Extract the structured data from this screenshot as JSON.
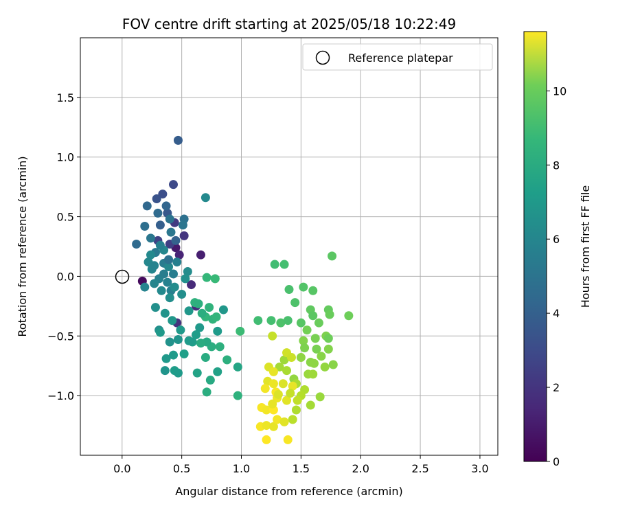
{
  "chart_data": {
    "type": "scatter",
    "title": "FOV centre drift starting at 2025/05/18 10:22:49",
    "xlabel": "Angular distance from reference (arcmin)",
    "ylabel": "Rotation from reference (arcmin)",
    "colorbar_label": "Hours from first FF file",
    "xlim": [
      -0.35,
      3.15
    ],
    "ylim": [
      -1.5,
      2.0
    ],
    "x_ticks": [
      "0.0",
      "0.5",
      "1.0",
      "1.5",
      "2.0",
      "2.5",
      "3.0"
    ],
    "y_ticks": [
      "−1.0",
      "−0.5",
      "0.0",
      "0.5",
      "1.0",
      "1.5"
    ],
    "colorbar_range": [
      0,
      11.6
    ],
    "colorbar_ticks": [
      "0",
      "2",
      "4",
      "6",
      "8",
      "10"
    ],
    "colormap": "viridis",
    "grid": true,
    "legend": {
      "placement": "top-right",
      "entries": [
        {
          "label": "Reference platepar",
          "marker": "open-circle"
        }
      ]
    },
    "reference_point": {
      "x": 0.0,
      "y": 0.0
    },
    "points": [
      {
        "x": 0.17,
        "y": -0.04,
        "h": 0.3
      },
      {
        "x": 0.45,
        "y": 0.24,
        "h": 0.8
      },
      {
        "x": 0.66,
        "y": 0.18,
        "h": 1.0
      },
      {
        "x": 0.48,
        "y": 0.18,
        "h": 1.2
      },
      {
        "x": 0.58,
        "y": -0.07,
        "h": 1.4
      },
      {
        "x": 0.62,
        "y": -0.25,
        "h": 1.5
      },
      {
        "x": 0.46,
        "y": -0.39,
        "h": 1.7
      },
      {
        "x": 0.52,
        "y": 0.34,
        "h": 1.8
      },
      {
        "x": 0.44,
        "y": 0.45,
        "h": 2.0
      },
      {
        "x": 0.4,
        "y": 0.27,
        "h": 2.2
      },
      {
        "x": 0.3,
        "y": 0.3,
        "h": 2.3
      },
      {
        "x": 0.43,
        "y": 0.77,
        "h": 2.6
      },
      {
        "x": 0.34,
        "y": 0.69,
        "h": 2.8
      },
      {
        "x": 0.29,
        "y": 0.65,
        "h": 3.0
      },
      {
        "x": 0.47,
        "y": 1.14,
        "h": 3.4
      },
      {
        "x": 0.38,
        "y": 0.53,
        "h": 3.2
      },
      {
        "x": 0.32,
        "y": 0.43,
        "h": 3.5
      },
      {
        "x": 0.45,
        "y": 0.3,
        "h": 3.6
      },
      {
        "x": 0.37,
        "y": 0.59,
        "h": 3.8
      },
      {
        "x": 0.21,
        "y": 0.59,
        "h": 3.9
      },
      {
        "x": 0.12,
        "y": 0.27,
        "h": 4.0
      },
      {
        "x": 0.19,
        "y": 0.42,
        "h": 4.2
      },
      {
        "x": 0.52,
        "y": 0.48,
        "h": 4.3
      },
      {
        "x": 0.51,
        "y": 0.43,
        "h": 4.5
      },
      {
        "x": 0.41,
        "y": 0.37,
        "h": 4.6
      },
      {
        "x": 0.28,
        "y": 0.2,
        "h": 4.7
      },
      {
        "x": 0.35,
        "y": 0.11,
        "h": 4.8
      },
      {
        "x": 0.43,
        "y": 0.02,
        "h": 4.9
      },
      {
        "x": 0.41,
        "y": -0.12,
        "h": 5.0
      },
      {
        "x": 0.31,
        "y": -0.02,
        "h": 5.1
      },
      {
        "x": 0.19,
        "y": -0.09,
        "h": 5.2
      },
      {
        "x": 0.27,
        "y": -0.06,
        "h": 5.3
      },
      {
        "x": 0.39,
        "y": 0.08,
        "h": 5.4
      },
      {
        "x": 0.24,
        "y": 0.18,
        "h": 5.5
      },
      {
        "x": 0.35,
        "y": 0.22,
        "h": 5.4
      },
      {
        "x": 0.55,
        "y": 0.04,
        "h": 5.6
      },
      {
        "x": 0.4,
        "y": -0.18,
        "h": 5.7
      },
      {
        "x": 0.31,
        "y": -0.45,
        "h": 5.8
      },
      {
        "x": 0.47,
        "y": -0.53,
        "h": 6.0
      },
      {
        "x": 0.4,
        "y": -0.55,
        "h": 5.9
      },
      {
        "x": 0.56,
        "y": -0.29,
        "h": 6.1
      },
      {
        "x": 0.65,
        "y": -0.43,
        "h": 6.2
      },
      {
        "x": 0.8,
        "y": -0.46,
        "h": 6.3
      },
      {
        "x": 0.85,
        "y": -0.28,
        "h": 6.1
      },
      {
        "x": 0.59,
        "y": -0.55,
        "h": 6.4
      },
      {
        "x": 0.52,
        "y": -0.65,
        "h": 6.5
      },
      {
        "x": 0.43,
        "y": -0.66,
        "h": 6.3
      },
      {
        "x": 0.37,
        "y": -0.69,
        "h": 6.2
      },
      {
        "x": 0.36,
        "y": -0.79,
        "h": 6.0
      },
      {
        "x": 0.44,
        "y": -0.79,
        "h": 6.4
      },
      {
        "x": 0.47,
        "y": -0.81,
        "h": 6.3
      },
      {
        "x": 0.7,
        "y": 0.66,
        "h": 5.5
      },
      {
        "x": 0.63,
        "y": -0.81,
        "h": 6.7
      },
      {
        "x": 0.71,
        "y": -0.97,
        "h": 7.2
      },
      {
        "x": 0.74,
        "y": -0.87,
        "h": 7.0
      },
      {
        "x": 0.8,
        "y": -0.8,
        "h": 6.6
      },
      {
        "x": 0.97,
        "y": -0.76,
        "h": 6.8
      },
      {
        "x": 0.97,
        "y": -1.0,
        "h": 7.4
      },
      {
        "x": 0.88,
        "y": -0.7,
        "h": 7.3
      },
      {
        "x": 0.7,
        "y": -0.68,
        "h": 7.1
      },
      {
        "x": 0.75,
        "y": -0.59,
        "h": 7.2
      },
      {
        "x": 0.82,
        "y": -0.59,
        "h": 7.3
      },
      {
        "x": 0.71,
        "y": -0.55,
        "h": 7.0
      },
      {
        "x": 0.66,
        "y": -0.56,
        "h": 7.1
      },
      {
        "x": 0.61,
        "y": -0.22,
        "h": 7.4
      },
      {
        "x": 0.7,
        "y": -0.34,
        "h": 7.6
      },
      {
        "x": 0.76,
        "y": -0.36,
        "h": 7.5
      },
      {
        "x": 0.79,
        "y": -0.34,
        "h": 7.6
      },
      {
        "x": 0.73,
        "y": -0.26,
        "h": 7.5
      },
      {
        "x": 0.71,
        "y": -0.01,
        "h": 7.7
      },
      {
        "x": 0.78,
        "y": -0.02,
        "h": 7.8
      },
      {
        "x": 0.99,
        "y": -0.46,
        "h": 7.9
      },
      {
        "x": 1.14,
        "y": -0.37,
        "h": 8.0
      },
      {
        "x": 1.25,
        "y": -0.37,
        "h": 8.1
      },
      {
        "x": 1.28,
        "y": 0.1,
        "h": 8.0
      },
      {
        "x": 1.36,
        "y": 0.1,
        "h": 8.1
      },
      {
        "x": 1.4,
        "y": -0.11,
        "h": 8.2
      },
      {
        "x": 1.45,
        "y": -0.22,
        "h": 8.3
      },
      {
        "x": 1.52,
        "y": -0.09,
        "h": 8.4
      },
      {
        "x": 1.6,
        "y": -0.12,
        "h": 8.5
      },
      {
        "x": 1.76,
        "y": 0.17,
        "h": 8.6
      },
      {
        "x": 1.33,
        "y": -0.39,
        "h": 8.3
      },
      {
        "x": 1.39,
        "y": -0.37,
        "h": 8.2
      },
      {
        "x": 1.5,
        "y": -0.39,
        "h": 8.5
      },
      {
        "x": 1.58,
        "y": -0.28,
        "h": 8.7
      },
      {
        "x": 1.6,
        "y": -0.33,
        "h": 8.6
      },
      {
        "x": 1.65,
        "y": -0.39,
        "h": 8.9
      },
      {
        "x": 1.73,
        "y": -0.28,
        "h": 8.8
      },
      {
        "x": 1.74,
        "y": -0.32,
        "h": 8.9
      },
      {
        "x": 1.9,
        "y": -0.33,
        "h": 9.0
      },
      {
        "x": 1.55,
        "y": -0.45,
        "h": 9.1
      },
      {
        "x": 1.62,
        "y": -0.52,
        "h": 9.2
      },
      {
        "x": 1.71,
        "y": -0.5,
        "h": 9.3
      },
      {
        "x": 1.73,
        "y": -0.52,
        "h": 9.0
      },
      {
        "x": 1.52,
        "y": -0.54,
        "h": 9.4
      },
      {
        "x": 1.53,
        "y": -0.6,
        "h": 9.3
      },
      {
        "x": 1.63,
        "y": -0.61,
        "h": 9.2
      },
      {
        "x": 1.73,
        "y": -0.61,
        "h": 9.4
      },
      {
        "x": 1.67,
        "y": -0.67,
        "h": 9.5
      },
      {
        "x": 1.5,
        "y": -0.68,
        "h": 9.6
      },
      {
        "x": 1.58,
        "y": -0.72,
        "h": 9.5
      },
      {
        "x": 1.61,
        "y": -0.73,
        "h": 9.6
      },
      {
        "x": 1.7,
        "y": -0.76,
        "h": 9.7
      },
      {
        "x": 1.77,
        "y": -0.74,
        "h": 9.5
      },
      {
        "x": 1.56,
        "y": -0.82,
        "h": 9.8
      },
      {
        "x": 1.6,
        "y": -0.82,
        "h": 9.9
      },
      {
        "x": 1.44,
        "y": -0.86,
        "h": 9.7
      },
      {
        "x": 1.36,
        "y": -0.7,
        "h": 9.9
      },
      {
        "x": 1.32,
        "y": -0.76,
        "h": 10.0
      },
      {
        "x": 1.38,
        "y": -0.79,
        "h": 10.1
      },
      {
        "x": 1.46,
        "y": -0.9,
        "h": 10.1
      },
      {
        "x": 1.53,
        "y": -0.95,
        "h": 10.2
      },
      {
        "x": 1.5,
        "y": -1.0,
        "h": 10.3
      },
      {
        "x": 1.66,
        "y": -1.01,
        "h": 9.8
      },
      {
        "x": 1.58,
        "y": -1.08,
        "h": 10.0
      },
      {
        "x": 1.46,
        "y": -1.12,
        "h": 10.2
      },
      {
        "x": 1.43,
        "y": -1.2,
        "h": 10.4
      },
      {
        "x": 1.26,
        "y": -0.5,
        "h": 10.6
      },
      {
        "x": 1.38,
        "y": -0.64,
        "h": 10.8
      },
      {
        "x": 1.42,
        "y": -0.68,
        "h": 10.7
      },
      {
        "x": 1.23,
        "y": -0.76,
        "h": 11.0
      },
      {
        "x": 1.27,
        "y": -0.8,
        "h": 11.2
      },
      {
        "x": 1.22,
        "y": -0.88,
        "h": 11.1
      },
      {
        "x": 1.27,
        "y": -0.9,
        "h": 11.3
      },
      {
        "x": 1.35,
        "y": -0.9,
        "h": 11.0
      },
      {
        "x": 1.43,
        "y": -0.92,
        "h": 11.2
      },
      {
        "x": 1.2,
        "y": -0.94,
        "h": 11.4
      },
      {
        "x": 1.29,
        "y": -0.97,
        "h": 11.5
      },
      {
        "x": 1.3,
        "y": -1.02,
        "h": 11.3
      },
      {
        "x": 1.38,
        "y": -1.04,
        "h": 11.1
      },
      {
        "x": 1.17,
        "y": -1.1,
        "h": 11.5
      },
      {
        "x": 1.21,
        "y": -1.12,
        "h": 11.4
      },
      {
        "x": 1.27,
        "y": -1.12,
        "h": 11.6
      },
      {
        "x": 1.16,
        "y": -1.26,
        "h": 11.5
      },
      {
        "x": 1.21,
        "y": -1.25,
        "h": 11.3
      },
      {
        "x": 1.27,
        "y": -1.26,
        "h": 11.2
      },
      {
        "x": 1.3,
        "y": -1.2,
        "h": 11.4
      },
      {
        "x": 1.21,
        "y": -1.37,
        "h": 11.6
      },
      {
        "x": 1.39,
        "y": -1.37,
        "h": 11.5
      },
      {
        "x": 1.36,
        "y": -1.22,
        "h": 11.1
      },
      {
        "x": 1.31,
        "y": -0.99,
        "h": 11.0
      },
      {
        "x": 1.41,
        "y": -0.98,
        "h": 10.6
      },
      {
        "x": 1.47,
        "y": -1.04,
        "h": 10.5
      },
      {
        "x": 1.26,
        "y": -1.07,
        "h": 11.2
      },
      {
        "x": 0.25,
        "y": 0.06,
        "h": 5.3
      },
      {
        "x": 0.32,
        "y": 0.26,
        "h": 5.0
      },
      {
        "x": 0.22,
        "y": 0.12,
        "h": 5.4
      },
      {
        "x": 0.27,
        "y": 0.09,
        "h": 5.2
      },
      {
        "x": 0.35,
        "y": 0.02,
        "h": 4.9
      },
      {
        "x": 0.38,
        "y": -0.05,
        "h": 5.1
      },
      {
        "x": 0.44,
        "y": -0.09,
        "h": 5.6
      },
      {
        "x": 0.5,
        "y": -0.15,
        "h": 5.7
      },
      {
        "x": 0.33,
        "y": -0.12,
        "h": 5.5
      },
      {
        "x": 0.28,
        "y": -0.26,
        "h": 5.8
      },
      {
        "x": 0.36,
        "y": -0.31,
        "h": 6.0
      },
      {
        "x": 0.42,
        "y": -0.37,
        "h": 6.1
      },
      {
        "x": 0.49,
        "y": -0.45,
        "h": 6.2
      },
      {
        "x": 0.56,
        "y": -0.54,
        "h": 6.3
      },
      {
        "x": 0.62,
        "y": -0.49,
        "h": 6.4
      },
      {
        "x": 0.24,
        "y": 0.32,
        "h": 4.6
      },
      {
        "x": 0.3,
        "y": 0.53,
        "h": 4.0
      },
      {
        "x": 0.4,
        "y": 0.48,
        "h": 4.4
      },
      {
        "x": 0.46,
        "y": 0.12,
        "h": 5.0
      },
      {
        "x": 0.53,
        "y": -0.02,
        "h": 5.8
      },
      {
        "x": 0.32,
        "y": -0.47,
        "h": 6.2
      },
      {
        "x": 0.67,
        "y": -0.31,
        "h": 7.2
      },
      {
        "x": 0.64,
        "y": -0.23,
        "h": 7.3
      },
      {
        "x": 0.39,
        "y": 0.14,
        "h": 4.3
      }
    ]
  }
}
